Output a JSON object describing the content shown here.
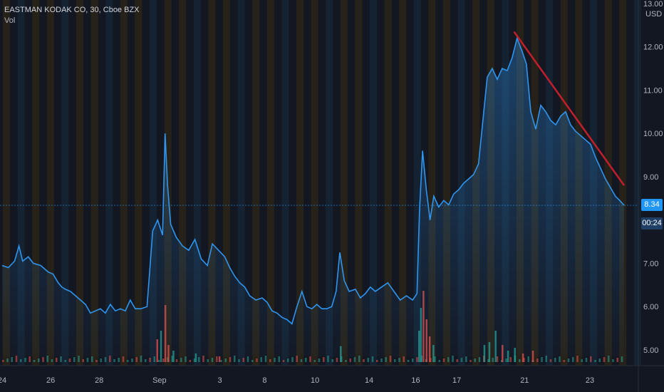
{
  "legend": {
    "symbol": "EASTMAN KODAK CO, 30, Cboe BZX",
    "indicator": "Vol"
  },
  "axis": {
    "currency": "USD",
    "y_ticks": [
      "13.00",
      "12.00",
      "11.00",
      "10.00",
      "9.00",
      "7.00",
      "6.00",
      "5.00"
    ],
    "x_ticks": [
      "24",
      "26",
      "28",
      "Sep",
      "3",
      "8",
      "10",
      "14",
      "16",
      "17",
      "21",
      "23"
    ]
  },
  "last_price": {
    "value": "8.34",
    "countdown": "00:24"
  },
  "colors": {
    "background": "#131722",
    "price_line": "#2f95ee",
    "trend_line": "#c21f2c",
    "session_stripe_orange": "#2b2418",
    "session_stripe_blue": "#162434",
    "vol_up": "#26a69a",
    "vol_down": "#ef5350",
    "badge": "#2196f3"
  },
  "chart_data": {
    "type": "area",
    "title": "EASTMAN KODAK CO, 30, Cboe BZX",
    "ylabel": "USD",
    "ylim": [
      4.85,
      13.0
    ],
    "grid": false,
    "legend_placement": "top-left",
    "x_domain": [
      0,
      100
    ],
    "x_ticks": [
      {
        "label": "24",
        "x": 0
      },
      {
        "label": "26",
        "x": 7.8
      },
      {
        "label": "28",
        "x": 15.6
      },
      {
        "label": "Sep",
        "x": 25.3
      },
      {
        "label": "3",
        "x": 35.0
      },
      {
        "label": "8",
        "x": 42.2
      },
      {
        "label": "10",
        "x": 50.3
      },
      {
        "label": "14",
        "x": 59.0
      },
      {
        "label": "16",
        "x": 66.5
      },
      {
        "label": "17",
        "x": 73.1
      },
      {
        "label": "21",
        "x": 84.0
      },
      {
        "label": "23",
        "x": 94.5
      }
    ],
    "series": [
      {
        "kind": "price",
        "points": [
          [
            0,
            6.95
          ],
          [
            1,
            6.9
          ],
          [
            2,
            7.05
          ],
          [
            2.7,
            7.4
          ],
          [
            3.3,
            7.05
          ],
          [
            4.2,
            7.15
          ],
          [
            5,
            7.0
          ],
          [
            6.2,
            6.95
          ],
          [
            7.4,
            6.8
          ],
          [
            8.2,
            6.75
          ],
          [
            9,
            6.55
          ],
          [
            9.6,
            6.45
          ],
          [
            10.2,
            6.4
          ],
          [
            11,
            6.35
          ],
          [
            11.8,
            6.25
          ],
          [
            12.6,
            6.15
          ],
          [
            13.4,
            6.05
          ],
          [
            14.2,
            5.85
          ],
          [
            15,
            5.9
          ],
          [
            15.8,
            5.95
          ],
          [
            16.6,
            5.85
          ],
          [
            17.4,
            6.05
          ],
          [
            18.2,
            5.9
          ],
          [
            19,
            5.95
          ],
          [
            19.8,
            5.9
          ],
          [
            20.6,
            6.15
          ],
          [
            21.4,
            5.95
          ],
          [
            22.3,
            5.95
          ],
          [
            23.3,
            6.0
          ],
          [
            24.2,
            7.75
          ],
          [
            25,
            8.0
          ],
          [
            25.8,
            7.65
          ],
          [
            26.2,
            10.0
          ],
          [
            26.6,
            8.8
          ],
          [
            27.1,
            7.9
          ],
          [
            28,
            7.6
          ],
          [
            29,
            7.4
          ],
          [
            30,
            7.3
          ],
          [
            31,
            7.55
          ],
          [
            32,
            7.1
          ],
          [
            33,
            6.95
          ],
          [
            33.8,
            7.45
          ],
          [
            34.8,
            7.3
          ],
          [
            35.8,
            7.15
          ],
          [
            36.6,
            6.9
          ],
          [
            37.4,
            6.7
          ],
          [
            38.2,
            6.55
          ],
          [
            39,
            6.45
          ],
          [
            39.8,
            6.25
          ],
          [
            40.8,
            6.15
          ],
          [
            41.8,
            6.2
          ],
          [
            42.6,
            6.1
          ],
          [
            43.4,
            5.9
          ],
          [
            44.2,
            5.85
          ],
          [
            45,
            5.75
          ],
          [
            45.8,
            5.7
          ],
          [
            46.6,
            5.6
          ],
          [
            47.4,
            6.0
          ],
          [
            48.2,
            6.35
          ],
          [
            49,
            6.0
          ],
          [
            49.8,
            5.95
          ],
          [
            50.6,
            6.05
          ],
          [
            51.4,
            5.95
          ],
          [
            52.2,
            5.95
          ],
          [
            53,
            6.0
          ],
          [
            53.7,
            6.35
          ],
          [
            54.3,
            7.25
          ],
          [
            55,
            6.6
          ],
          [
            55.8,
            6.35
          ],
          [
            56.8,
            6.4
          ],
          [
            57.6,
            6.2
          ],
          [
            58.4,
            6.3
          ],
          [
            59.2,
            6.45
          ],
          [
            60,
            6.35
          ],
          [
            61,
            6.45
          ],
          [
            62,
            6.55
          ],
          [
            63,
            6.35
          ],
          [
            64,
            6.15
          ],
          [
            65,
            6.25
          ],
          [
            66,
            6.15
          ],
          [
            66.7,
            6.3
          ],
          [
            67.1,
            8.2
          ],
          [
            67.6,
            9.6
          ],
          [
            68.2,
            8.7
          ],
          [
            68.8,
            8.0
          ],
          [
            69.4,
            8.55
          ],
          [
            70.2,
            8.3
          ],
          [
            71,
            8.45
          ],
          [
            71.8,
            8.35
          ],
          [
            72.6,
            8.6
          ],
          [
            73.4,
            8.7
          ],
          [
            74.2,
            8.85
          ],
          [
            75,
            8.95
          ],
          [
            75.8,
            9.05
          ],
          [
            76.6,
            9.3
          ],
          [
            77.3,
            10.3
          ],
          [
            78,
            11.3
          ],
          [
            78.8,
            11.5
          ],
          [
            79.6,
            11.25
          ],
          [
            80.4,
            11.5
          ],
          [
            81.2,
            11.45
          ],
          [
            82,
            11.75
          ],
          [
            82.8,
            12.2
          ],
          [
            83.6,
            11.9
          ],
          [
            84.3,
            11.6
          ],
          [
            85,
            10.5
          ],
          [
            85.8,
            10.1
          ],
          [
            86.6,
            10.65
          ],
          [
            87.4,
            10.5
          ],
          [
            88.2,
            10.3
          ],
          [
            89,
            10.2
          ],
          [
            89.8,
            10.4
          ],
          [
            90.6,
            10.5
          ],
          [
            91.4,
            10.2
          ],
          [
            92.2,
            10.05
          ],
          [
            93,
            9.95
          ],
          [
            93.8,
            9.85
          ],
          [
            94.6,
            9.75
          ],
          [
            95.4,
            9.45
          ],
          [
            96.2,
            9.2
          ],
          [
            97,
            8.95
          ],
          [
            97.8,
            8.75
          ],
          [
            98.6,
            8.55
          ],
          [
            99.3,
            8.45
          ],
          [
            100,
            8.34
          ]
        ]
      },
      {
        "kind": "trendline",
        "points": [
          [
            82.3,
            12.35
          ],
          [
            100,
            8.8
          ]
        ]
      }
    ],
    "volume_spikes": [
      {
        "x": 26.1,
        "v": 1.0,
        "dir": "down"
      },
      {
        "x": 25.4,
        "v": 0.55,
        "dir": "up"
      },
      {
        "x": 24.8,
        "v": 0.4,
        "dir": "down"
      },
      {
        "x": 26.6,
        "v": 0.3,
        "dir": "down"
      },
      {
        "x": 27.4,
        "v": 0.2,
        "dir": "up"
      },
      {
        "x": 31,
        "v": 0.15,
        "dir": "up"
      },
      {
        "x": 34.8,
        "v": 0.1,
        "dir": "down"
      },
      {
        "x": 54.3,
        "v": 0.28,
        "dir": "up"
      },
      {
        "x": 67.2,
        "v": 0.95,
        "dir": "up"
      },
      {
        "x": 67.6,
        "v": 1.25,
        "dir": "down"
      },
      {
        "x": 68.1,
        "v": 0.75,
        "dir": "down"
      },
      {
        "x": 66.9,
        "v": 0.55,
        "dir": "up"
      },
      {
        "x": 68.6,
        "v": 0.45,
        "dir": "down"
      },
      {
        "x": 69.2,
        "v": 0.3,
        "dir": "up"
      },
      {
        "x": 77.4,
        "v": 0.3,
        "dir": "up"
      },
      {
        "x": 78.2,
        "v": 0.35,
        "dir": "up"
      },
      {
        "x": 79.2,
        "v": 0.55,
        "dir": "up"
      },
      {
        "x": 80.3,
        "v": 0.3,
        "dir": "down"
      },
      {
        "x": 81.2,
        "v": 0.2,
        "dir": "up"
      },
      {
        "x": 82.3,
        "v": 0.25,
        "dir": "up"
      },
      {
        "x": 83.6,
        "v": 0.15,
        "dir": "down"
      },
      {
        "x": 85.2,
        "v": 0.2,
        "dir": "down"
      }
    ]
  }
}
